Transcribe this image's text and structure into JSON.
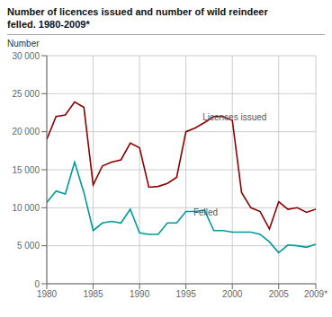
{
  "chart_data": {
    "type": "line",
    "title": "Number of licences issued and number of wild reindeer\nfelled. 1980-2009*",
    "ylabel": "Number",
    "x": [
      1980,
      1981,
      1982,
      1983,
      1984,
      1985,
      1986,
      1987,
      1988,
      1989,
      1990,
      1991,
      1992,
      1993,
      1994,
      1995,
      1996,
      1997,
      1998,
      1999,
      2000,
      2001,
      2002,
      2003,
      2004,
      2005,
      2006,
      2007,
      2008,
      2009
    ],
    "series": [
      {
        "name": "Licences issued",
        "color": "#8B0000",
        "values": [
          19000,
          22000,
          22200,
          23900,
          23200,
          13000,
          15500,
          16000,
          16300,
          18500,
          17900,
          12700,
          12800,
          13200,
          14000,
          20000,
          20500,
          21200,
          22000,
          22000,
          21500,
          12000,
          10000,
          9500,
          7200,
          10800,
          9800,
          10000,
          9400,
          9800
        ]
      },
      {
        "name": "Felled",
        "color": "#009999",
        "values": [
          10700,
          12200,
          11800,
          16000,
          12000,
          7000,
          8000,
          8200,
          8000,
          9800,
          6700,
          6500,
          6500,
          8000,
          8000,
          9500,
          9500,
          9700,
          7000,
          7000,
          6800,
          6800,
          6800,
          6500,
          5500,
          4100,
          5100,
          5000,
          4800,
          5200
        ]
      }
    ],
    "annotations": [
      {
        "text": "Licences issued",
        "x": 1996.8,
        "y": 21200
      },
      {
        "text": "Felled",
        "x": 1995.8,
        "y": 8600
      }
    ],
    "xlim": [
      1980,
      2009
    ],
    "ylim": [
      0,
      30000
    ],
    "xticks": [
      1980,
      1985,
      1990,
      1995,
      2000,
      2005,
      {
        "value": 2009,
        "label": "2009*"
      }
    ],
    "yticks": [
      0,
      {
        "value": 5000,
        "label": "5 000"
      },
      {
        "value": 10000,
        "label": "10 000"
      },
      {
        "value": 15000,
        "label": "15 000"
      },
      {
        "value": 20000,
        "label": "20 000"
      },
      {
        "value": 25000,
        "label": "25 000"
      },
      {
        "value": 30000,
        "label": "30 000"
      }
    ],
    "grid": true
  }
}
